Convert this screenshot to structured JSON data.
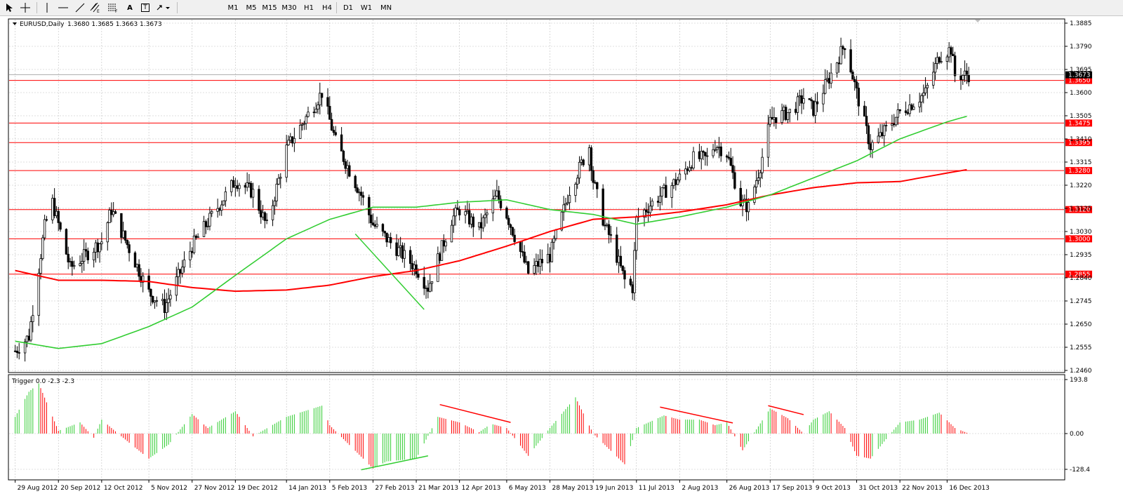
{
  "toolbar": {
    "timeframes": [
      "M1",
      "M5",
      "M15",
      "M30",
      "H1",
      "H4",
      "D1",
      "W1",
      "MN"
    ],
    "text_tool": "A",
    "label_tool": "T"
  },
  "chart_title": "EURUSD,Daily",
  "ohlc": "1.3680 1.3685 1.3663 1.3673",
  "indicator_title": "Trigger 0.0 -2.3 -2.3",
  "colors": {
    "bull": "#000000",
    "bear": "#000000",
    "ma_fast": "#32cd32",
    "ma_slow": "#ff0000",
    "level_line": "#ff0000",
    "level_label_bg": "#ff0000",
    "grid": "#c0c0c0",
    "osc_pos": "#32cd32",
    "osc_neg": "#ff0000",
    "trendline": "#ff0000",
    "trendline_green": "#32cd32"
  },
  "price_axis": [
    "1.3885",
    "1.3790",
    "1.3695",
    "1.3600",
    "1.3505",
    "1.3410",
    "1.3315",
    "1.3220",
    "1.3125",
    "1.3030",
    "1.2935",
    "1.2840",
    "1.2745",
    "1.2650",
    "1.2555",
    "1.2460"
  ],
  "current_price": "1.3673",
  "levels": [
    "1.3650",
    "1.3475",
    "1.3395",
    "1.3280",
    "1.3120",
    "1.3000",
    "1.2855"
  ],
  "osc_axis": [
    "193.8",
    "0.00",
    "-128.4"
  ],
  "dates": [
    "29 Aug 2012",
    "20 Sep 2012",
    "12 Oct 2012",
    "5 Nov 2012",
    "27 Nov 2012",
    "19 Dec 2012",
    "14 Jan 2013",
    "5 Feb 2013",
    "27 Feb 2013",
    "21 Mar 2013",
    "12 Apr 2013",
    "6 May 2013",
    "28 May 2013",
    "19 Jun 2013",
    "11 Jul 2013",
    "2 Aug 2013",
    "26 Aug 2013",
    "17 Sep 2013",
    "9 Oct 2013",
    "31 Oct 2013",
    "22 Nov 2013",
    "16 Dec 2013"
  ],
  "chart_data": {
    "type": "candlestick",
    "symbol": "EURUSD",
    "timeframe": "Daily",
    "ylim": [
      1.246,
      1.3885
    ],
    "oscillator_ylim": [
      -128.4,
      193.8
    ],
    "anchors": [
      [
        "29 Aug 2012",
        1.254
      ],
      [
        "5 Sep 2012",
        1.26
      ],
      [
        "13 Sep 2012",
        1.305
      ],
      [
        "17 Sep 2012",
        1.315
      ],
      [
        "26 Sep 2012",
        1.288
      ],
      [
        "12 Oct 2012",
        1.299
      ],
      [
        "17 Oct 2012",
        1.312
      ],
      [
        "5 Nov 2012",
        1.278
      ],
      [
        "13 Nov 2012",
        1.272
      ],
      [
        "27 Nov 2012",
        1.297
      ],
      [
        "19 Dec 2012",
        1.324
      ],
      [
        "28 Dec 2012",
        1.319
      ],
      [
        "4 Jan 2013",
        1.305
      ],
      [
        "14 Jan 2013",
        1.337
      ],
      [
        "1 Feb 2013",
        1.36
      ],
      [
        "8 Feb 2013",
        1.34
      ],
      [
        "21 Feb 2013",
        1.318
      ],
      [
        "27 Feb 2013",
        1.306
      ],
      [
        "6 Mar 2013",
        1.3
      ],
      [
        "21 Mar 2013",
        1.288
      ],
      [
        "27 Mar 2013",
        1.28
      ],
      [
        "8 Apr 2013",
        1.308
      ],
      [
        "12 Apr 2013",
        1.312
      ],
      [
        "22 Apr 2013",
        1.304
      ],
      [
        "1 May 2013",
        1.318
      ],
      [
        "6 May 2013",
        1.31
      ],
      [
        "17 May 2013",
        1.286
      ],
      [
        "21 May 2013",
        1.289
      ],
      [
        "28 May 2013",
        1.293
      ],
      [
        "7 Jun 2013",
        1.32
      ],
      [
        "17 Jun 2013",
        1.338
      ],
      [
        "19 Jun 2013",
        1.324
      ],
      [
        "25 Jun 2013",
        1.305
      ],
      [
        "28 Jun 2013",
        1.3
      ],
      [
        "5 Jul 2013",
        1.283
      ],
      [
        "9 Jul 2013",
        1.28
      ],
      [
        "11 Jul 2013",
        1.308
      ],
      [
        "18 Jul 2013",
        1.314
      ],
      [
        "2 Aug 2013",
        1.325
      ],
      [
        "9 Aug 2013",
        1.333
      ],
      [
        "16 Aug 2013",
        1.333
      ],
      [
        "20 Aug 2013",
        1.339
      ],
      [
        "26 Aug 2013",
        1.335
      ],
      [
        "2 Sep 2013",
        1.315
      ],
      [
        "6 Sep 2013",
        1.313
      ],
      [
        "12 Sep 2013",
        1.33
      ],
      [
        "17 Sep 2013",
        1.348
      ],
      [
        "19 Sep 2013",
        1.35
      ],
      [
        "27 Sep 2013",
        1.352
      ],
      [
        "4 Oct 2013",
        1.358
      ],
      [
        "9 Oct 2013",
        1.353
      ],
      [
        "17 Oct 2013",
        1.366
      ],
      [
        "25 Oct 2013",
        1.38
      ],
      [
        "31 Oct 2013",
        1.36
      ],
      [
        "7 Nov 2013",
        1.338
      ],
      [
        "12 Nov 2013",
        1.342
      ],
      [
        "22 Nov 2013",
        1.352
      ],
      [
        "29 Nov 2013",
        1.356
      ],
      [
        "5 Dec 2013",
        1.36
      ],
      [
        "12 Dec 2013",
        1.375
      ],
      [
        "18 Dec 2013",
        1.378
      ],
      [
        "20 Dec 2013",
        1.367
      ],
      [
        "27 Dec 2013",
        1.3673
      ]
    ],
    "ma_fast": [
      [
        "29 Aug 2012",
        1.258
      ],
      [
        "20 Sep 2012",
        1.255
      ],
      [
        "12 Oct 2012",
        1.257
      ],
      [
        "5 Nov 2012",
        1.264
      ],
      [
        "27 Nov 2012",
        1.272
      ],
      [
        "19 Dec 2012",
        1.285
      ],
      [
        "14 Jan 2013",
        1.3
      ],
      [
        "5 Feb 2013",
        1.308
      ],
      [
        "27 Feb 2013",
        1.313
      ],
      [
        "21 Mar 2013",
        1.313
      ],
      [
        "12 Apr 2013",
        1.315
      ],
      [
        "6 May 2013",
        1.316
      ],
      [
        "28 May 2013",
        1.312
      ],
      [
        "19 Jun 2013",
        1.31
      ],
      [
        "11 Jul 2013",
        1.306
      ],
      [
        "2 Aug 2013",
        1.309
      ],
      [
        "26 Aug 2013",
        1.313
      ],
      [
        "17 Sep 2013",
        1.318
      ],
      [
        "9 Oct 2013",
        1.325
      ],
      [
        "31 Oct 2013",
        1.332
      ],
      [
        "22 Nov 2013",
        1.341
      ],
      [
        "16 Dec 2013",
        1.348
      ],
      [
        "27 Dec 2013",
        1.3505
      ]
    ],
    "ma_slow": [
      [
        "29 Aug 2012",
        1.287
      ],
      [
        "20 Sep 2012",
        1.283
      ],
      [
        "12 Oct 2012",
        1.283
      ],
      [
        "5 Nov 2012",
        1.2825
      ],
      [
        "27 Nov 2012",
        1.28
      ],
      [
        "19 Dec 2012",
        1.2785
      ],
      [
        "14 Jan 2013",
        1.279
      ],
      [
        "5 Feb 2013",
        1.281
      ],
      [
        "27 Feb 2013",
        1.2845
      ],
      [
        "21 Mar 2013",
        1.287
      ],
      [
        "12 Apr 2013",
        1.291
      ],
      [
        "6 May 2013",
        1.297
      ],
      [
        "28 May 2013",
        1.303
      ],
      [
        "19 Jun 2013",
        1.308
      ],
      [
        "11 Jul 2013",
        1.309
      ],
      [
        "2 Aug 2013",
        1.311
      ],
      [
        "26 Aug 2013",
        1.314
      ],
      [
        "17 Sep 2013",
        1.318
      ],
      [
        "9 Oct 2013",
        1.321
      ],
      [
        "31 Oct 2013",
        1.323
      ],
      [
        "22 Nov 2013",
        1.3235
      ],
      [
        "16 Dec 2013",
        1.327
      ],
      [
        "27 Dec 2013",
        1.3285
      ]
    ],
    "oscillator": [
      [
        "29 Aug 2012",
        60
      ],
      [
        "5 Sep 2012",
        150
      ],
      [
        "10 Sep 2012",
        180
      ],
      [
        "20 Sep 2012",
        10
      ],
      [
        "1 Oct 2012",
        40
      ],
      [
        "8 Oct 2012",
        -15
      ],
      [
        "12 Oct 2012",
        50
      ],
      [
        "22 Oct 2012",
        -10
      ],
      [
        "5 Nov 2012",
        -90
      ],
      [
        "15 Nov 2012",
        -40
      ],
      [
        "27 Nov 2012",
        70
      ],
      [
        "5 Dec 2012",
        20
      ],
      [
        "19 Dec 2012",
        80
      ],
      [
        "28 Dec 2012",
        -10
      ],
      [
        "14 Jan 2013",
        60
      ],
      [
        "1 Feb 2013",
        100
      ],
      [
        "5 Feb 2013",
        30
      ],
      [
        "12 Feb 2013",
        -20
      ],
      [
        "27 Feb 2013",
        -125
      ],
      [
        "6 Mar 2013",
        -100
      ],
      [
        "21 Mar 2013",
        -90
      ],
      [
        "1 Apr 2013",
        60
      ],
      [
        "12 Apr 2013",
        40
      ],
      [
        "22 Apr 2013",
        5
      ],
      [
        "28 Apr 2013",
        35
      ],
      [
        "6 May 2013",
        20
      ],
      [
        "17 May 2013",
        -80
      ],
      [
        "28 May 2013",
        20
      ],
      [
        "10 Jun 2013",
        130
      ],
      [
        "19 Jun 2013",
        0
      ],
      [
        "5 Jul 2013",
        -110
      ],
      [
        "11 Jul 2013",
        20
      ],
      [
        "25 Jul 2013",
        65
      ],
      [
        "2 Aug 2013",
        50
      ],
      [
        "12 Aug 2013",
        50
      ],
      [
        "20 Aug 2013",
        30
      ],
      [
        "26 Aug 2013",
        40
      ],
      [
        "3 Sep 2013",
        -60
      ],
      [
        "17 Sep 2013",
        90
      ],
      [
        "26 Sep 2013",
        55
      ],
      [
        "4 Oct 2013",
        0
      ],
      [
        "9 Oct 2013",
        50
      ],
      [
        "17 Oct 2013",
        80
      ],
      [
        "25 Oct 2013",
        20
      ],
      [
        "31 Oct 2013",
        -80
      ],
      [
        "7 Nov 2013",
        -90
      ],
      [
        "15 Nov 2013",
        -20
      ],
      [
        "22 Nov 2013",
        40
      ],
      [
        "2 Dec 2013",
        50
      ],
      [
        "12 Dec 2013",
        75
      ],
      [
        "20 Dec 2013",
        20
      ],
      [
        "27 Dec 2013",
        0
      ]
    ],
    "trendlines_price": [
      {
        "from": [
          "18 Feb 2013",
          1.302
        ],
        "to": [
          "25 Mar 2013",
          1.271
        ],
        "color": "#32cd32"
      }
    ],
    "trendlines_osc": [
      {
        "from": [
          "2 Apr 2013",
          104
        ],
        "to": [
          "8 May 2013",
          40
        ],
        "color": "#ff0000"
      },
      {
        "from": [
          "23 Jul 2013",
          95
        ],
        "to": [
          "29 Aug 2013",
          38
        ],
        "color": "#ff0000"
      },
      {
        "from": [
          "16 Sep 2013",
          100
        ],
        "to": [
          "4 Oct 2013",
          68
        ],
        "color": "#ff0000"
      },
      {
        "from": [
          "21 Feb 2013",
          -130
        ],
        "to": [
          "27 Mar 2013",
          -80
        ],
        "color": "#32cd32"
      }
    ]
  }
}
